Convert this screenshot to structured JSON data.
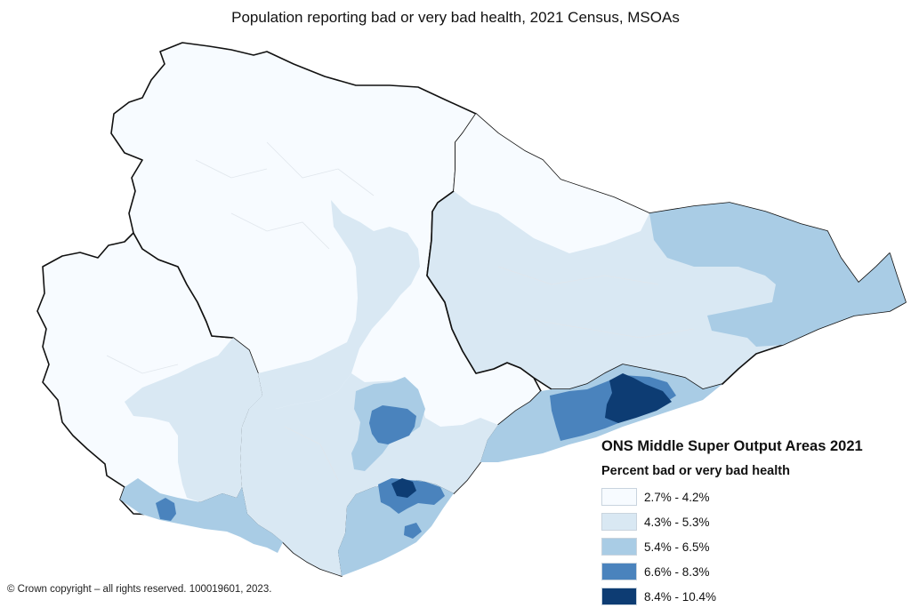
{
  "title": "Population reporting bad or very bad health, 2021 Census, MSOAs",
  "legend": {
    "title": "ONS Middle Super Output Areas 2021",
    "subtitle": "Percent bad or very bad health",
    "classes": [
      {
        "label": "2.7% - 4.2%",
        "color": "#f7fbff"
      },
      {
        "label": "4.3% - 5.3%",
        "color": "#d9e8f3"
      },
      {
        "label": "5.4% - 6.5%",
        "color": "#a9cce5"
      },
      {
        "label": "6.6% - 8.3%",
        "color": "#4a83bd"
      },
      {
        "label": "8.4% - 10.4%",
        "color": "#0d3c73"
      }
    ]
  },
  "copyright": "© Crown copyright – all rights reserved. 100019601, 2023."
}
